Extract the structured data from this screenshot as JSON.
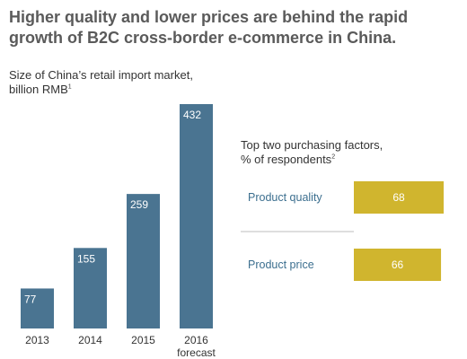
{
  "title": "Higher quality and lower prices are behind the rapid growth of B2C cross-border e-commerce in China.",
  "chart_data": [
    {
      "type": "bar",
      "title": "Size of China’s retail import market,",
      "subtitle": "billion RMB",
      "footnote_mark": "1",
      "categories": [
        "2013",
        "2014",
        "2015",
        "2016"
      ],
      "category_sublabels": [
        "",
        "",
        "",
        "forecast"
      ],
      "values": [
        77,
        155,
        259,
        432
      ],
      "ylim": [
        0,
        432
      ],
      "grid": false,
      "color": "#4a7491"
    },
    {
      "type": "bar",
      "orientation": "horizontal",
      "title": "Top two purchasing factors,",
      "subtitle": "% of respondents",
      "footnote_mark": "2",
      "categories": [
        "Product quality",
        "Product price"
      ],
      "values": [
        68,
        66
      ],
      "xlim": [
        0,
        68
      ],
      "grid": false,
      "color": "#d0b52e",
      "label_color": "#3c6f8f"
    }
  ]
}
